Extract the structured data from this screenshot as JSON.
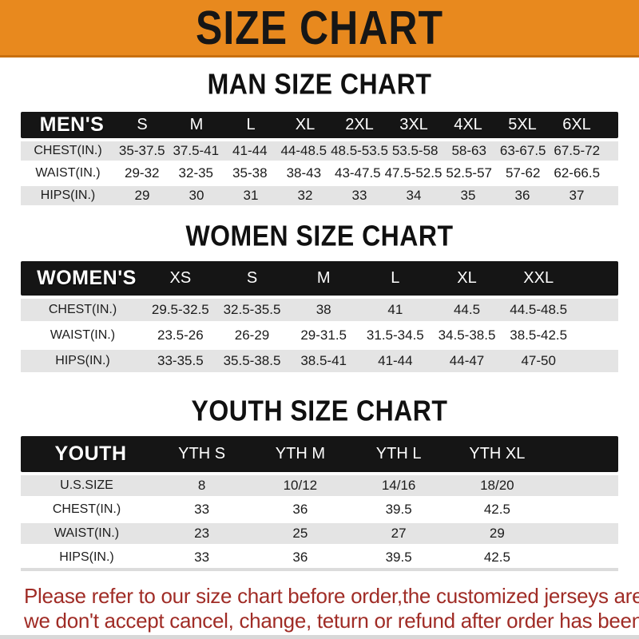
{
  "banner": {
    "title": "SIZE CHART"
  },
  "colors": {
    "banner_orange": "#E8891E",
    "banner_border": "#C9700F",
    "bar_black": "#151515",
    "row_gray": "#E4E4E4",
    "footer_red": "#A02C26",
    "bottom_strip": "#D8D8D8"
  },
  "sections": [
    {
      "title": "MAN SIZE CHART",
      "table": {
        "label": "MEN'S",
        "columns": [
          "S",
          "M",
          "L",
          "XL",
          "2XL",
          "3XL",
          "4XL",
          "5XL",
          "6XL"
        ],
        "rows": [
          {
            "label": "CHEST(IN.)",
            "values": [
              "35-37.5",
              "37.5-41",
              "41-44",
              "44-48.5",
              "48.5-53.5",
              "53.5-58",
              "58-63",
              "63-67.5",
              "67.5-72"
            ]
          },
          {
            "label": "WAIST(IN.)",
            "values": [
              "29-32",
              "32-35",
              "35-38",
              "38-43",
              "43-47.5",
              "47.5-52.5",
              "52.5-57",
              "57-62",
              "62-66.5"
            ]
          },
          {
            "label": "HIPS(IN.)",
            "values": [
              "29",
              "30",
              "31",
              "32",
              "33",
              "34",
              "35",
              "36",
              "37"
            ]
          }
        ]
      }
    },
    {
      "title": "WOMEN SIZE CHART",
      "table": {
        "label": "WOMEN'S",
        "columns": [
          "XS",
          "S",
          "M",
          "L",
          "XL",
          "XXL"
        ],
        "rows": [
          {
            "label": "CHEST(IN.)",
            "values": [
              "29.5-32.5",
              "32.5-35.5",
              "38",
              "41",
              "44.5",
              "44.5-48.5"
            ]
          },
          {
            "label": "WAIST(IN.)",
            "values": [
              "23.5-26",
              "26-29",
              "29-31.5",
              "31.5-34.5",
              "34.5-38.5",
              "38.5-42.5"
            ]
          },
          {
            "label": "HIPS(IN.)",
            "values": [
              "33-35.5",
              "35.5-38.5",
              "38.5-41",
              "41-44",
              "44-47",
              "47-50"
            ]
          }
        ]
      }
    },
    {
      "title": "YOUTH SIZE CHART",
      "table": {
        "label": "YOUTH",
        "columns": [
          "YTH S",
          "YTH M",
          "YTH L",
          "YTH XL"
        ],
        "rows": [
          {
            "label": "U.S.SIZE",
            "values": [
              "8",
              "10/12",
              "14/16",
              "18/20"
            ]
          },
          {
            "label": "CHEST(IN.)",
            "values": [
              "33",
              "36",
              "39.5",
              "42.5"
            ]
          },
          {
            "label": "WAIST(IN.)",
            "values": [
              "23",
              "25",
              "27",
              "29"
            ]
          },
          {
            "label": "HIPS(IN.)",
            "values": [
              "33",
              "36",
              "39.5",
              "42.5"
            ]
          }
        ]
      }
    }
  ],
  "footer": {
    "line1": "Please refer to our size chart before order,the customized jerseys are special products,",
    "line2": "we don't accept cancel, change, teturn or refund after order has been placed!"
  }
}
